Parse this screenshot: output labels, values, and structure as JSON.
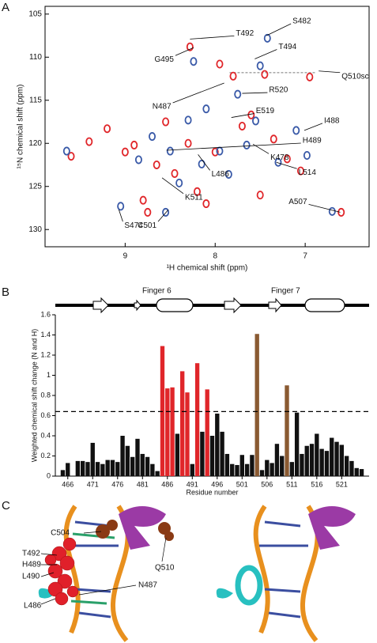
{
  "chart_data": [
    {
      "type": "scatter",
      "panel_label": "A",
      "x_label": "¹H chemical shift (ppm)",
      "y_label": "¹⁵N chemical shift (ppm)",
      "xlim": [
        9.89,
        6.29
      ],
      "ylim": [
        104.1,
        132.0
      ],
      "xticks": [
        9,
        8,
        7
      ],
      "yticks": [
        105,
        110,
        115,
        120,
        125,
        130
      ],
      "reference_line": {
        "y": 111.8,
        "x": [
          7.84,
          6.88
        ]
      },
      "series": [
        {
          "name": "red",
          "color": "#e0262a",
          "x": [
            9.6,
            9.4,
            9.2,
            9.0,
            8.9,
            8.8,
            8.75,
            8.65,
            8.55,
            8.45,
            8.3,
            8.2,
            8.1,
            8.28,
            7.95,
            7.8,
            7.7,
            7.6,
            7.45,
            7.35,
            7.2,
            7.05,
            6.95,
            6.6,
            7.5,
            8.0
          ],
          "values": [
            121.5,
            119.8,
            118.3,
            121.0,
            120.2,
            126.6,
            128.0,
            122.5,
            117.5,
            123.5,
            120.0,
            125.6,
            127.0,
            108.8,
            110.8,
            112.2,
            118.0,
            116.7,
            112.0,
            119.5,
            121.8,
            123.2,
            112.3,
            128.0,
            126.0,
            121.0
          ]
        },
        {
          "name": "blue",
          "color": "#3a5aa8",
          "x": [
            9.65,
            9.05,
            8.85,
            8.55,
            8.7,
            8.5,
            8.3,
            8.15,
            8.1,
            7.95,
            7.85,
            7.75,
            7.65,
            7.5,
            7.42,
            7.3,
            7.1,
            6.98,
            6.7,
            8.24,
            7.55,
            8.4
          ],
          "values": [
            120.9,
            127.3,
            121.9,
            128.0,
            119.2,
            120.9,
            117.3,
            122.4,
            116.0,
            120.9,
            123.6,
            114.3,
            120.2,
            111.0,
            107.8,
            122.2,
            118.5,
            121.4,
            127.9,
            110.5,
            117.4,
            124.6
          ]
        }
      ],
      "annotations": [
        {
          "label": "S482",
          "x": 7.43,
          "y": 107.5
        },
        {
          "label": "T492",
          "x": 8.28,
          "y": 107.9
        },
        {
          "label": "T494",
          "x": 7.56,
          "y": 110.2
        },
        {
          "label": "G495",
          "x": 8.24,
          "y": 108.9
        },
        {
          "label": "Q510sc",
          "x": 6.85,
          "y": 111.6
        },
        {
          "label": "R520",
          "x": 7.7,
          "y": 114.2
        },
        {
          "label": "N487",
          "x": 7.9,
          "y": 113.0
        },
        {
          "label": "E519",
          "x": 7.82,
          "y": 117.0
        },
        {
          "label": "I488",
          "x": 7.01,
          "y": 118.5
        },
        {
          "label": "H489",
          "x": 8.54,
          "y": 120.8
        },
        {
          "label": "K478",
          "x": 7.58,
          "y": 120.1
        },
        {
          "label": "L486",
          "x": 8.19,
          "y": 121.3
        },
        {
          "label": "L514",
          "x": 7.32,
          "y": 122.2
        },
        {
          "label": "K511",
          "x": 8.59,
          "y": 124.0
        },
        {
          "label": "A507",
          "x": 6.61,
          "y": 128.0
        },
        {
          "label": "S474",
          "x": 9.07,
          "y": 127.7
        },
        {
          "label": "C501",
          "x": 8.52,
          "y": 127.7
        }
      ]
    },
    {
      "type": "bar",
      "panel_label": "B",
      "y_label": "Weighted chemical shift change (N and H)",
      "x_label": "Residue number",
      "structure_labels": [
        "Finger 6",
        "Finger 7"
      ],
      "xlim": [
        463.5,
        526.5
      ],
      "ylim": [
        0,
        1.6
      ],
      "xticks": [
        466,
        471,
        476,
        481,
        486,
        491,
        496,
        501,
        506,
        511,
        516,
        521
      ],
      "yticks": [
        0,
        0.2,
        0.4,
        0.6,
        0.8,
        1,
        1.2,
        1.4,
        1.6
      ],
      "threshold": 0.64,
      "x": [
        465,
        466,
        467,
        468,
        469,
        470,
        471,
        472,
        473,
        474,
        475,
        476,
        477,
        478,
        479,
        480,
        481,
        482,
        483,
        484,
        485,
        486,
        487,
        488,
        489,
        490,
        491,
        492,
        493,
        494,
        495,
        496,
        497,
        498,
        499,
        500,
        501,
        502,
        503,
        504,
        505,
        506,
        507,
        508,
        509,
        510,
        511,
        512,
        513,
        514,
        515,
        516,
        517,
        518,
        519,
        520,
        521,
        522,
        523,
        524,
        525
      ],
      "values": [
        0.06,
        0.13,
        null,
        0.15,
        0.15,
        0.14,
        0.33,
        0.14,
        0.12,
        0.16,
        0.16,
        0.14,
        0.4,
        0.3,
        0.19,
        0.37,
        0.22,
        0.19,
        0.12,
        0.05,
        1.29,
        0.87,
        0.88,
        0.42,
        1.04,
        0.83,
        0.12,
        1.12,
        0.44,
        0.86,
        0.4,
        0.62,
        0.44,
        0.22,
        0.12,
        0.11,
        0.21,
        0.12,
        0.21,
        1.41,
        0.06,
        0.16,
        0.13,
        0.32,
        0.2,
        0.9,
        0.14,
        0.63,
        0.22,
        0.3,
        0.32,
        0.42,
        0.27,
        0.25,
        0.38,
        0.34,
        0.31,
        0.2,
        0.15,
        0.08,
        0.07
      ],
      "colors": [
        "#111111",
        "#111111",
        "#111111",
        "#111111",
        "#111111",
        "#111111",
        "#111111",
        "#111111",
        "#111111",
        "#111111",
        "#111111",
        "#111111",
        "#111111",
        "#111111",
        "#111111",
        "#111111",
        "#111111",
        "#111111",
        "#111111",
        "#111111",
        "#e0262a",
        "#e0262a",
        "#e0262a",
        "#111111",
        "#e0262a",
        "#e0262a",
        "#111111",
        "#e0262a",
        "#111111",
        "#e0262a",
        "#111111",
        "#111111",
        "#111111",
        "#111111",
        "#111111",
        "#111111",
        "#111111",
        "#111111",
        "#111111",
        "#8a5a32",
        "#111111",
        "#111111",
        "#111111",
        "#111111",
        "#111111",
        "#8a5a32",
        "#111111",
        "#111111",
        "#111111",
        "#111111",
        "#111111",
        "#111111",
        "#111111",
        "#111111",
        "#111111",
        "#111111",
        "#111111",
        "#111111",
        "#111111",
        "#111111",
        "#111111"
      ]
    }
  ],
  "panel_c": {
    "panel_label": "C",
    "labels": [
      "C504",
      "T492",
      "H489",
      "L490",
      "L486",
      "Q510",
      "N487"
    ]
  }
}
